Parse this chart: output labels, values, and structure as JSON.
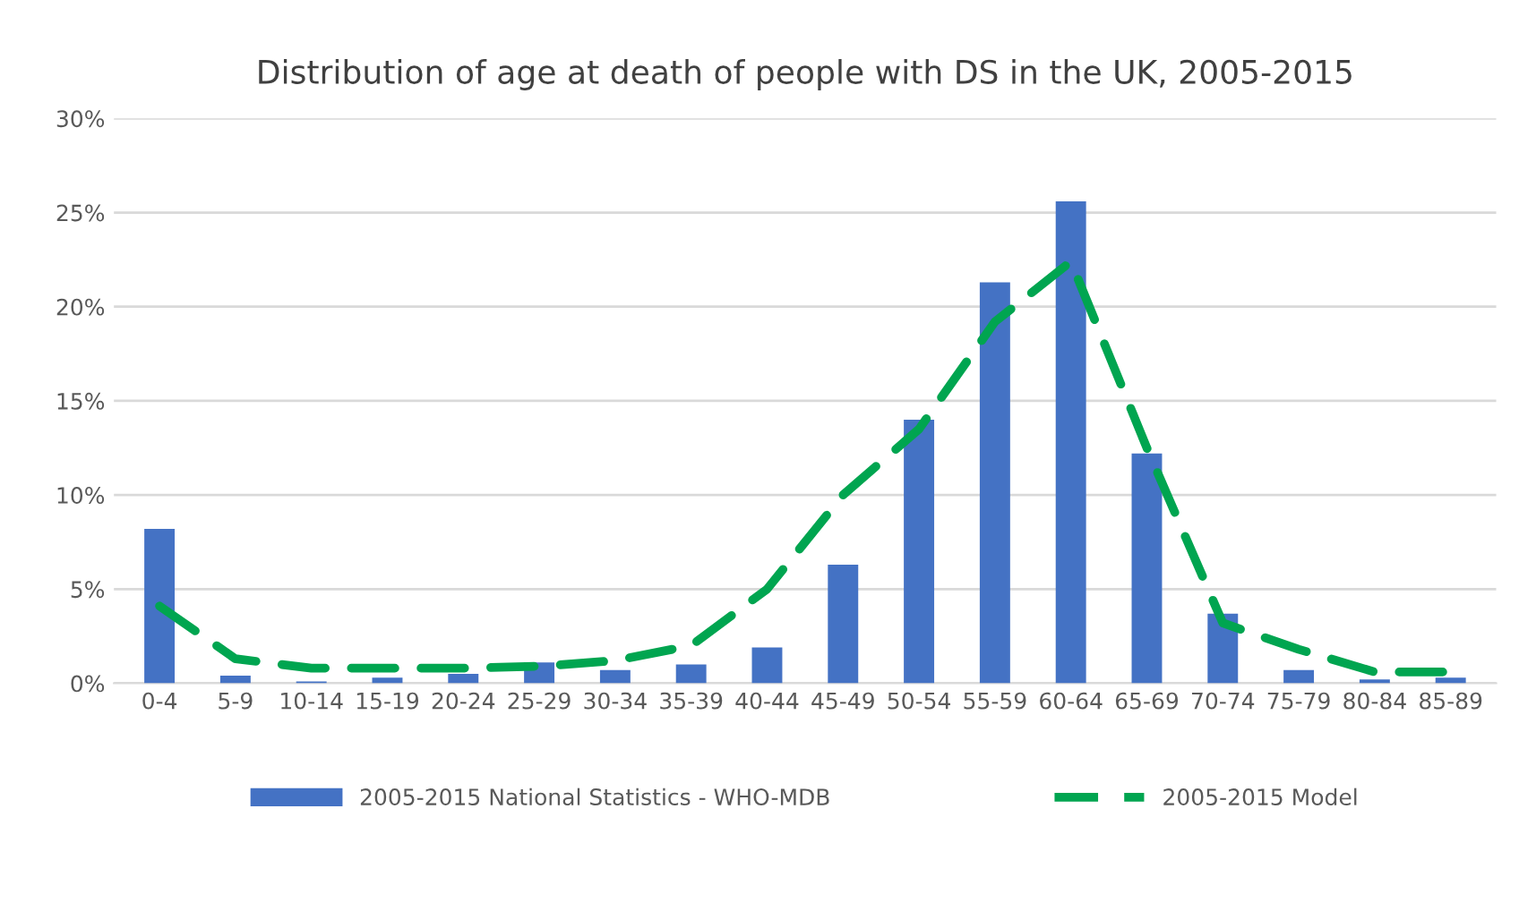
{
  "chart_data": {
    "type": "bar",
    "title": "Distribution of age at death of people with DS in the UK, 2005-2015",
    "categories": [
      "0-4",
      "5-9",
      "10-14",
      "15-19",
      "20-24",
      "25-29",
      "30-34",
      "35-39",
      "40-44",
      "45-49",
      "50-54",
      "55-59",
      "60-64",
      "65-69",
      "70-74",
      "75-79",
      "80-84",
      "85-89"
    ],
    "series": [
      {
        "name": "2005-2015 National Statistics - WHO-MDB",
        "color": "#4472c4",
        "values": [
          8.2,
          0.4,
          0.1,
          0.3,
          0.5,
          1.1,
          0.7,
          1.0,
          1.9,
          6.3,
          14.0,
          21.3,
          25.6,
          12.2,
          3.7,
          0.7,
          0.2,
          0.3
        ]
      },
      {
        "name": "2005-2015 Model",
        "type": "line",
        "color": "#00a550",
        "line_style": "dashed",
        "values": [
          4.1,
          1.3,
          0.8,
          0.8,
          0.8,
          0.9,
          1.2,
          2.0,
          5.0,
          10.0,
          13.5,
          19.2,
          22.4,
          12.5,
          3.2,
          1.8,
          0.6,
          0.6
        ]
      }
    ],
    "ylim": [
      0,
      30
    ],
    "yticks": [
      {
        "value": 0,
        "label": "0%"
      },
      {
        "value": 5,
        "label": "5%"
      },
      {
        "value": 10,
        "label": "10%"
      },
      {
        "value": 15,
        "label": "15%"
      },
      {
        "value": 20,
        "label": "20%"
      },
      {
        "value": 25,
        "label": "25%"
      },
      {
        "value": 30,
        "label": "30%"
      }
    ],
    "grid": "y",
    "legend": "bottom",
    "marker": "none"
  }
}
